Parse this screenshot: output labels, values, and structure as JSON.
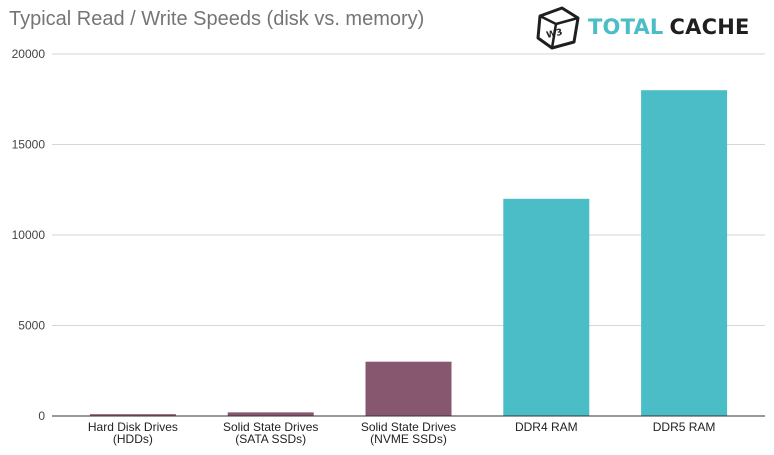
{
  "title": "Typical Read / Write Speeds (disk vs. memory)",
  "logo": {
    "badge": "W3",
    "word1": "TOTAL",
    "word2": "CACHE",
    "accent_color": "#4bbdc6",
    "dark_color": "#1f1f1f",
    "icon": "w3-cube-icon"
  },
  "chart_data": {
    "type": "bar",
    "title": "Typical Read / Write Speeds (disk vs. memory)",
    "xlabel": "",
    "ylabel": "",
    "categories": [
      [
        "Hard Disk Drives",
        "(HDDs)"
      ],
      [
        "Solid State Drives",
        "(SATA SSDs)"
      ],
      [
        "Solid State Drives",
        "(NVME SSDs)"
      ],
      [
        "DDR4 RAM"
      ],
      [
        "DDR5 RAM"
      ]
    ],
    "values": [
      100,
      200,
      3000,
      12000,
      18000
    ],
    "bar_colors": [
      "#87566f",
      "#87566f",
      "#87566f",
      "#4bbdc6",
      "#4bbdc6"
    ],
    "ylim": [
      0,
      20000
    ],
    "yticks": [
      0,
      5000,
      10000,
      15000,
      20000
    ],
    "grid": true,
    "legend": "none"
  }
}
